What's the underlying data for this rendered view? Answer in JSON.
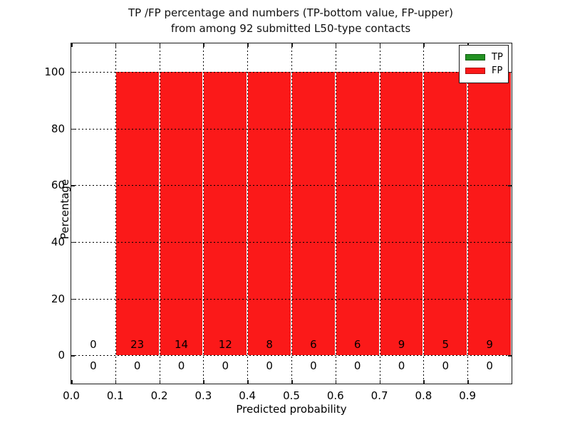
{
  "figure": {
    "title_line1": "TP /FP percentage and numbers (TP-bottom value, FP-upper)",
    "title_line2": "from among 92 submitted L50-type contacts"
  },
  "chart_data": {
    "type": "bar",
    "subtype": "stacked-percentage-histogram",
    "title": "TP /FP percentage and numbers (TP-bottom value, FP-upper)\nfrom among 92 submitted L50-type contacts",
    "xlabel": "Predicted probability",
    "ylabel": "Percentage",
    "xlim": [
      0.0,
      1.0
    ],
    "ylim": [
      -10,
      110
    ],
    "grid": true,
    "x_tick_values": [
      0.0,
      0.1,
      0.2,
      0.3,
      0.4,
      0.5,
      0.6,
      0.7,
      0.8,
      0.9
    ],
    "x_tick_labels": [
      "0.0",
      "0.1",
      "0.2",
      "0.3",
      "0.4",
      "0.5",
      "0.6",
      "0.7",
      "0.8",
      "0.9"
    ],
    "y_tick_values": [
      0,
      20,
      40,
      60,
      80,
      100
    ],
    "y_tick_labels": [
      "0",
      "20",
      "40",
      "60",
      "80",
      "100"
    ],
    "bin_starts": [
      0.0,
      0.1,
      0.2,
      0.3,
      0.4,
      0.5,
      0.6,
      0.7,
      0.8,
      0.9
    ],
    "bin_width": 0.1,
    "series": [
      {
        "name": "TP",
        "color": "#229122",
        "edge_color": "#0e5c0e",
        "percentages": [
          0,
          0,
          0,
          0,
          0,
          0,
          0,
          0,
          0,
          0
        ],
        "counts": [
          0,
          0,
          0,
          0,
          0,
          0,
          0,
          0,
          0,
          0
        ]
      },
      {
        "name": "FP",
        "color": "#fb1919",
        "edge_color": "#ab0f0f",
        "percentages": [
          0,
          100,
          100,
          100,
          100,
          100,
          100,
          100,
          100,
          100
        ],
        "counts": [
          0,
          23,
          14,
          12,
          8,
          6,
          6,
          9,
          5,
          9
        ]
      }
    ],
    "annotations": {
      "fp_counts_row": [
        "0",
        "23",
        "14",
        "12",
        "8",
        "6",
        "6",
        "9",
        "5",
        "9"
      ],
      "tp_counts_row": [
        "0",
        "0",
        "0",
        "0",
        "0",
        "0",
        "0",
        "0",
        "0",
        "0"
      ],
      "fp_row_y_value": 3.8,
      "tp_row_y_value": -3.8
    },
    "legend": {
      "position": "upper-right",
      "items": [
        {
          "label": "TP",
          "color": "#229122",
          "edge_color": "#0e5c0e"
        },
        {
          "label": "FP",
          "color": "#fb1919",
          "edge_color": "#ab0f0f"
        }
      ]
    },
    "total_contacts": 92
  }
}
